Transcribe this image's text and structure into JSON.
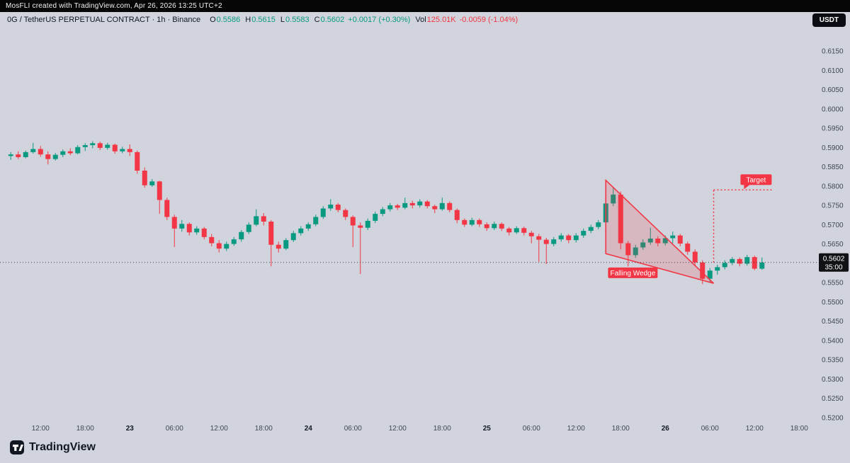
{
  "top_bar": {
    "text": "MosFLI created with TradingView.com, Apr 26, 2026 13:25 UTC+2"
  },
  "toolbar": {
    "currency_button": "USDT"
  },
  "legend": {
    "title": "0G / TetherUS PERPETUAL CONTRACT · 1h · Binance",
    "ohlc": [
      {
        "label": "O",
        "value": "0.5586"
      },
      {
        "label": "H",
        "value": "0.5615"
      },
      {
        "label": "L",
        "value": "0.5583"
      },
      {
        "label": "C",
        "value": "0.5602"
      }
    ],
    "change": "+0.0017 (+0.30%)",
    "vol_label": "Vol",
    "vol_value": "125.01K",
    "vol_change": "-0.0059 (-1.04%)"
  },
  "price_badge": {
    "price": "0.5602",
    "countdown": "35:00"
  },
  "logo": {
    "text": "TradingView"
  },
  "colors": {
    "up": "#089981",
    "down": "#f23645",
    "drawing": "#f23645",
    "background": "#d1d4dc",
    "axis_text": "#42464e",
    "price_line": "#3b3f46",
    "badge_bg": "#101216",
    "badge_text": "#ffffff"
  },
  "chart_data": {
    "type": "candlestick",
    "title": "0G / TetherUS PERPETUAL CONTRACT",
    "interval": "1h",
    "exchange": "Binance",
    "legend_readout": {
      "o": 0.5586,
      "h": 0.5615,
      "l": 0.5583,
      "c": 0.5602,
      "change": "+0.0017 (+0.30%)",
      "volume": "125.01K",
      "volume_change": "-0.0059 (-1.04%)"
    },
    "y_axis": {
      "min": 0.52,
      "max": 0.615,
      "last_price": 0.5602,
      "countdown": "35:00",
      "ticks": [
        "0.6150",
        "0.6100",
        "0.6050",
        "0.6000",
        "0.5950",
        "0.5900",
        "0.5850",
        "0.5800",
        "0.5750",
        "0.5700",
        "0.5650",
        "0.5600",
        "0.5550",
        "0.5500",
        "0.5450",
        "0.5400",
        "0.5350",
        "0.5300",
        "0.5250",
        "0.5200"
      ]
    },
    "x_ticks": [
      {
        "label": "12:00",
        "i": 4
      },
      {
        "label": "18:00",
        "i": 10
      },
      {
        "label": "23",
        "i": 16,
        "major": true
      },
      {
        "label": "06:00",
        "i": 22
      },
      {
        "label": "12:00",
        "i": 28
      },
      {
        "label": "18:00",
        "i": 34
      },
      {
        "label": "24",
        "i": 40,
        "major": true
      },
      {
        "label": "06:00",
        "i": 46
      },
      {
        "label": "12:00",
        "i": 52
      },
      {
        "label": "18:00",
        "i": 58
      },
      {
        "label": "25",
        "i": 64,
        "major": true
      },
      {
        "label": "06:00",
        "i": 70
      },
      {
        "label": "12:00",
        "i": 76
      },
      {
        "label": "18:00",
        "i": 82
      },
      {
        "label": "26",
        "i": 88,
        "major": true
      },
      {
        "label": "06:00",
        "i": 94
      },
      {
        "label": "12:00",
        "i": 100
      },
      {
        "label": "18:00",
        "i": 106
      }
    ],
    "candles": [
      [
        0.5878,
        0.5888,
        0.5868,
        0.5882
      ],
      [
        0.5882,
        0.589,
        0.587,
        0.5875
      ],
      [
        0.5875,
        0.5892,
        0.5872,
        0.5888
      ],
      [
        0.5888,
        0.5912,
        0.5884,
        0.5896
      ],
      [
        0.5896,
        0.5904,
        0.5876,
        0.5882
      ],
      [
        0.5882,
        0.589,
        0.5856,
        0.587
      ],
      [
        0.587,
        0.5886,
        0.5866,
        0.5881
      ],
      [
        0.5881,
        0.5895,
        0.5875,
        0.589
      ],
      [
        0.589,
        0.5898,
        0.588,
        0.5885
      ],
      [
        0.5885,
        0.5906,
        0.5882,
        0.5901
      ],
      [
        0.5901,
        0.5911,
        0.5891,
        0.5906
      ],
      [
        0.5906,
        0.5916,
        0.5898,
        0.5911
      ],
      [
        0.5911,
        0.5915,
        0.5893,
        0.5899
      ],
      [
        0.5899,
        0.5912,
        0.5894,
        0.5907
      ],
      [
        0.5907,
        0.591,
        0.5884,
        0.589
      ],
      [
        0.589,
        0.5902,
        0.5885,
        0.5896
      ],
      [
        0.5896,
        0.5908,
        0.5878,
        0.5888
      ],
      [
        0.5888,
        0.5892,
        0.5832,
        0.584
      ],
      [
        0.584,
        0.5848,
        0.5796,
        0.5802
      ],
      [
        0.5802,
        0.5818,
        0.5798,
        0.5812
      ],
      [
        0.5812,
        0.5814,
        0.5728,
        0.5764
      ],
      [
        0.5764,
        0.577,
        0.5712,
        0.572
      ],
      [
        0.572,
        0.5726,
        0.5642,
        0.569
      ],
      [
        0.569,
        0.5712,
        0.5682,
        0.5702
      ],
      [
        0.5702,
        0.5706,
        0.5672,
        0.568
      ],
      [
        0.568,
        0.5696,
        0.5674,
        0.569
      ],
      [
        0.569,
        0.5694,
        0.5662,
        0.5668
      ],
      [
        0.5668,
        0.5676,
        0.5644,
        0.5652
      ],
      [
        0.5652,
        0.566,
        0.5628,
        0.5638
      ],
      [
        0.5638,
        0.5656,
        0.5632,
        0.565
      ],
      [
        0.565,
        0.5668,
        0.5645,
        0.5662
      ],
      [
        0.5662,
        0.5686,
        0.5656,
        0.5681
      ],
      [
        0.5681,
        0.5706,
        0.5676,
        0.57
      ],
      [
        0.57,
        0.574,
        0.5696,
        0.5722
      ],
      [
        0.5722,
        0.573,
        0.5698,
        0.5708
      ],
      [
        0.5708,
        0.5712,
        0.5592,
        0.5648
      ],
      [
        0.5648,
        0.5656,
        0.5628,
        0.5638
      ],
      [
        0.5638,
        0.5665,
        0.5634,
        0.566
      ],
      [
        0.566,
        0.5684,
        0.5655,
        0.5678
      ],
      [
        0.5678,
        0.5696,
        0.5672,
        0.569
      ],
      [
        0.569,
        0.5706,
        0.5684,
        0.5701
      ],
      [
        0.5701,
        0.5726,
        0.5696,
        0.572
      ],
      [
        0.572,
        0.5748,
        0.5715,
        0.5742
      ],
      [
        0.5742,
        0.5766,
        0.5736,
        0.5752
      ],
      [
        0.5752,
        0.5756,
        0.5732,
        0.5738
      ],
      [
        0.5738,
        0.5742,
        0.5712,
        0.572
      ],
      [
        0.572,
        0.5724,
        0.5642,
        0.5698
      ],
      [
        0.5698,
        0.5706,
        0.5572,
        0.5692
      ],
      [
        0.5692,
        0.5716,
        0.5686,
        0.571
      ],
      [
        0.571,
        0.5734,
        0.5704,
        0.5728
      ],
      [
        0.5728,
        0.5746,
        0.5722,
        0.574
      ],
      [
        0.574,
        0.5756,
        0.5734,
        0.575
      ],
      [
        0.575,
        0.5754,
        0.5738,
        0.5744
      ],
      [
        0.5744,
        0.577,
        0.574,
        0.5756
      ],
      [
        0.5756,
        0.5762,
        0.5742,
        0.575
      ],
      [
        0.575,
        0.5766,
        0.5744,
        0.576
      ],
      [
        0.576,
        0.5764,
        0.5742,
        0.5748
      ],
      [
        0.5748,
        0.5752,
        0.573,
        0.574
      ],
      [
        0.574,
        0.577,
        0.5736,
        0.5756
      ],
      [
        0.5756,
        0.576,
        0.5732,
        0.5738
      ],
      [
        0.5738,
        0.5742,
        0.5704,
        0.5712
      ],
      [
        0.5712,
        0.5716,
        0.5694,
        0.57
      ],
      [
        0.57,
        0.5718,
        0.5696,
        0.5712
      ],
      [
        0.5712,
        0.5716,
        0.5694,
        0.5701
      ],
      [
        0.5701,
        0.5706,
        0.5684,
        0.5691
      ],
      [
        0.5691,
        0.5708,
        0.5686,
        0.5702
      ],
      [
        0.5702,
        0.5706,
        0.5684,
        0.569
      ],
      [
        0.569,
        0.5694,
        0.5672,
        0.568
      ],
      [
        0.568,
        0.5696,
        0.5676,
        0.5691
      ],
      [
        0.5691,
        0.5695,
        0.5672,
        0.5679
      ],
      [
        0.5679,
        0.5684,
        0.5652,
        0.567
      ],
      [
        0.567,
        0.5676,
        0.5604,
        0.5661
      ],
      [
        0.5661,
        0.5666,
        0.5598,
        0.565
      ],
      [
        0.565,
        0.5668,
        0.5644,
        0.5662
      ],
      [
        0.5662,
        0.5678,
        0.5656,
        0.5672
      ],
      [
        0.5672,
        0.5676,
        0.5652,
        0.566
      ],
      [
        0.566,
        0.5678,
        0.5654,
        0.5672
      ],
      [
        0.5672,
        0.569,
        0.5666,
        0.5684
      ],
      [
        0.5684,
        0.57,
        0.5678,
        0.5694
      ],
      [
        0.5694,
        0.5712,
        0.5688,
        0.5706
      ],
      [
        0.5706,
        0.5762,
        0.57,
        0.5755
      ],
      [
        0.5755,
        0.5795,
        0.5748,
        0.5778
      ],
      [
        0.5778,
        0.5786,
        0.5636,
        0.5652
      ],
      [
        0.5652,
        0.5658,
        0.5592,
        0.5621
      ],
      [
        0.5621,
        0.5648,
        0.5614,
        0.5641
      ],
      [
        0.5641,
        0.5662,
        0.5635,
        0.5654
      ],
      [
        0.5654,
        0.5692,
        0.5648,
        0.5664
      ],
      [
        0.5664,
        0.567,
        0.5644,
        0.5652
      ],
      [
        0.5652,
        0.5672,
        0.5646,
        0.5665
      ],
      [
        0.5665,
        0.5682,
        0.5652,
        0.5672
      ],
      [
        0.5672,
        0.5676,
        0.5644,
        0.5651
      ],
      [
        0.5651,
        0.5656,
        0.5622,
        0.563
      ],
      [
        0.563,
        0.5636,
        0.5594,
        0.5602
      ],
      [
        0.5602,
        0.5608,
        0.5546,
        0.556
      ],
      [
        0.556,
        0.5588,
        0.5552,
        0.5581
      ],
      [
        0.5581,
        0.5596,
        0.557,
        0.559
      ],
      [
        0.559,
        0.5608,
        0.5584,
        0.5601
      ],
      [
        0.5601,
        0.5616,
        0.5595,
        0.5611
      ],
      [
        0.5611,
        0.5615,
        0.5592,
        0.5599
      ],
      [
        0.5599,
        0.5622,
        0.5594,
        0.5616
      ],
      [
        0.5616,
        0.562,
        0.5582,
        0.5586
      ],
      [
        0.5586,
        0.5615,
        0.5583,
        0.5602
      ]
    ],
    "drawings": {
      "wedge": {
        "label": "Falling Wedge",
        "points": [
          {
            "i": 80,
            "p": 0.5815
          },
          {
            "i": 94.5,
            "p": 0.5548
          },
          {
            "i": 80,
            "p": 0.5625
          }
        ],
        "label_i": 80.3,
        "label_p": 0.5589
      },
      "target": {
        "label": "Target",
        "price": 0.579,
        "from_price": 0.5602,
        "from_i": 94.5,
        "to_i": 102.3
      }
    }
  }
}
